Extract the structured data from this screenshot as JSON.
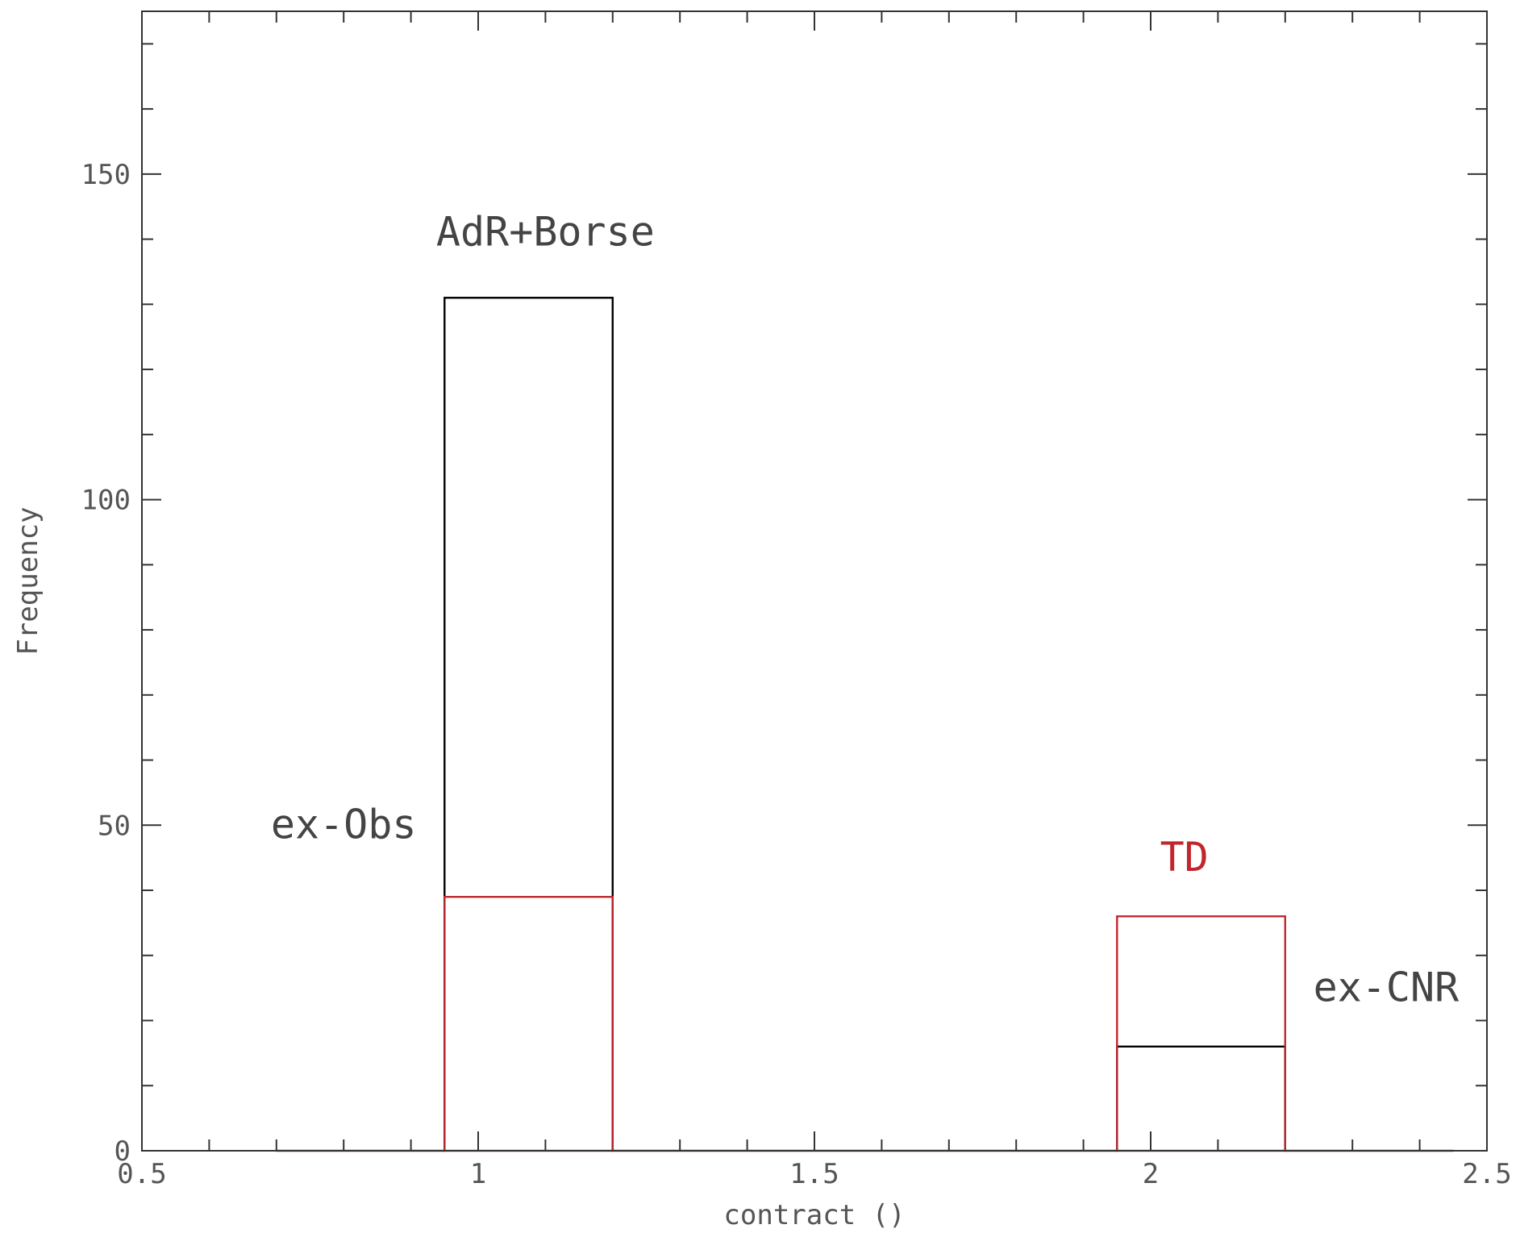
{
  "chart_data": {
    "type": "bar",
    "title": "",
    "xlabel": "contract ()",
    "ylabel": "Frequency",
    "xlim": [
      0.5,
      2.5
    ],
    "ylim": [
      0,
      175
    ],
    "x_ticks": [
      "0.5",
      "1",
      "1.5",
      "2",
      "2.5"
    ],
    "y_ticks": [
      "0",
      "50",
      "100",
      "150"
    ],
    "grid": false,
    "bin_edges": [
      0.7,
      0.95,
      1.2,
      1.45,
      1.7,
      1.95,
      2.2,
      2.45
    ],
    "series": [
      {
        "name": "AdR+Borse / ex-CNR",
        "color": "#000000",
        "values": [
          0,
          131,
          0,
          0,
          0,
          16,
          0
        ]
      },
      {
        "name": "ex-Obs / TD",
        "color": "#c0272d",
        "values": [
          0,
          39,
          0,
          0,
          0,
          36,
          0
        ]
      }
    ],
    "annotations": [
      {
        "text": "AdR+Borse",
        "x": 1.1,
        "y": 139,
        "color": "#444444"
      },
      {
        "text": "ex-Obs",
        "x": 0.8,
        "y": 48,
        "color": "#444444"
      },
      {
        "text": "TD",
        "x": 2.05,
        "y": 43,
        "color": "#c0272d"
      },
      {
        "text": "ex-CNR",
        "x": 2.35,
        "y": 23,
        "color": "#444444"
      }
    ]
  }
}
